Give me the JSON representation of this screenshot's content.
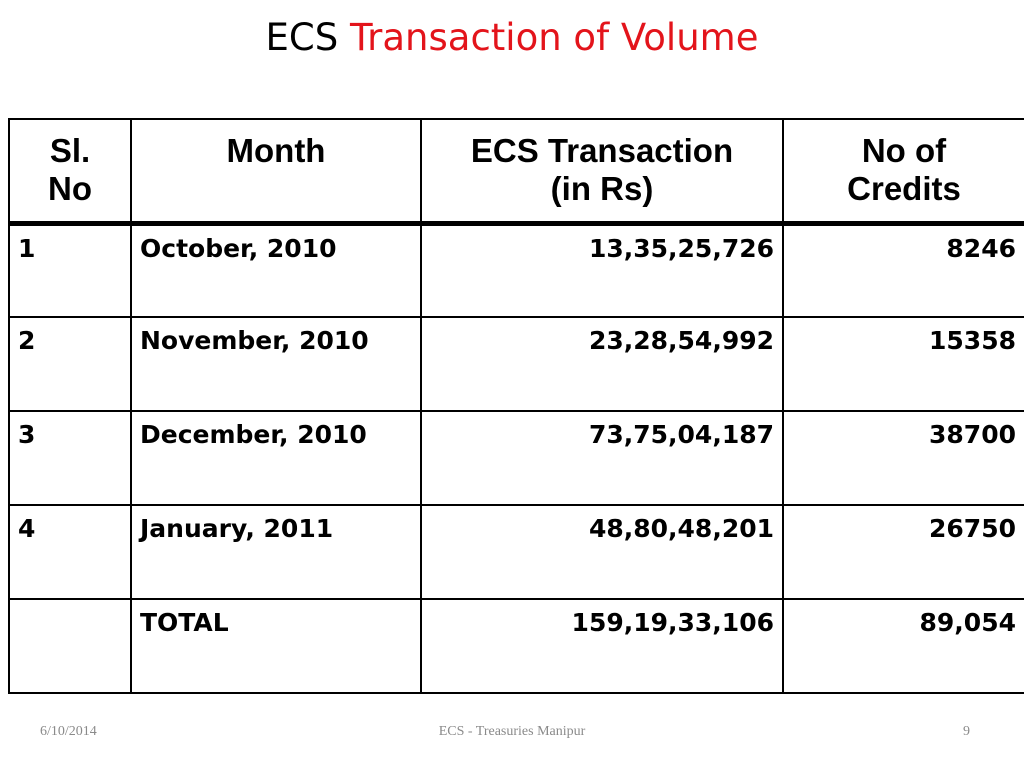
{
  "slide": {
    "title_prefix": "ECS",
    "title_accent": "Transaction of Volume",
    "accent_color": "#e3141b"
  },
  "table": {
    "headers": {
      "sl_line1": "Sl.",
      "sl_line2": "No",
      "month": "Month",
      "txn_line1": "ECS Transaction",
      "txn_line2": "(in Rs)",
      "credits_line1": "No of",
      "credits_line2": "Credits"
    },
    "rows": [
      {
        "sl": "1",
        "month": "October, 2010",
        "amount": "13,35,25,726",
        "credits": "8246"
      },
      {
        "sl": "2",
        "month": "November, 2010",
        "amount": "23,28,54,992",
        "credits": "15358"
      },
      {
        "sl": "3",
        "month": "December, 2010",
        "amount": "73,75,04,187",
        "credits": "38700"
      },
      {
        "sl": "4",
        "month": "January, 2011",
        "amount": "48,80,48,201",
        "credits": "26750"
      },
      {
        "sl": "",
        "month": "TOTAL",
        "amount": "159,19,33,106",
        "credits": "89,054"
      }
    ]
  },
  "footer": {
    "date": "6/10/2014",
    "center": "ECS - Treasuries Manipur",
    "page": "9"
  }
}
